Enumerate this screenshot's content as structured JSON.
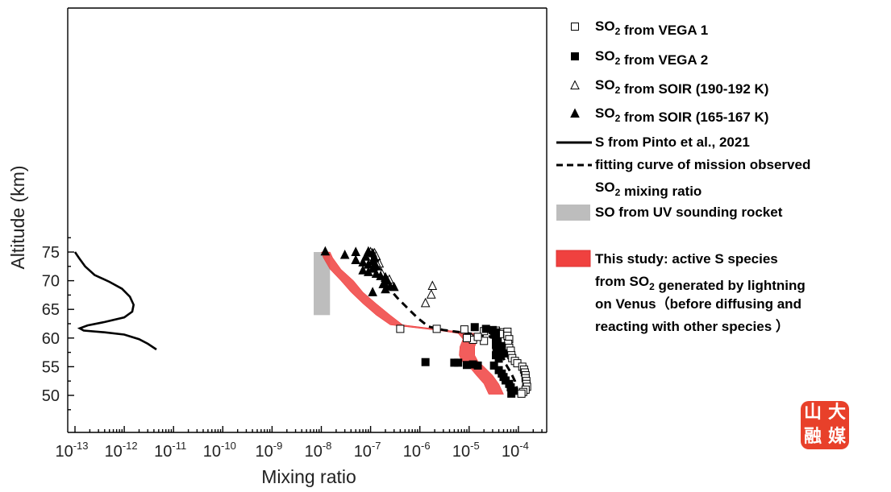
{
  "chart_data": {
    "type": "scatter",
    "xlabel": "Mixing ratio",
    "ylabel": "Altitude (km)",
    "xscale": "log",
    "xlim": [
      1e-13,
      0.0002
    ],
    "ylim": [
      48,
      77
    ],
    "x_ticks": [
      {
        "base": "10",
        "exp": "-13"
      },
      {
        "base": "10",
        "exp": "-12"
      },
      {
        "base": "10",
        "exp": "-11"
      },
      {
        "base": "10",
        "exp": "-10"
      },
      {
        "base": "10",
        "exp": "-9"
      },
      {
        "base": "10",
        "exp": "-8"
      },
      {
        "base": "10",
        "exp": "-7"
      },
      {
        "base": "10",
        "exp": "-6"
      },
      {
        "base": "10",
        "exp": "-5"
      },
      {
        "base": "10",
        "exp": "-4"
      }
    ],
    "y_ticks": [
      "50",
      "55",
      "60",
      "65",
      "70",
      "75"
    ],
    "legend_position": "right",
    "legend": [
      {
        "key": "vega1",
        "parts": [
          {
            "t": "SO"
          },
          {
            "t": "2",
            "sub": true
          },
          {
            "t": " from VEGA 1"
          }
        ]
      },
      {
        "key": "vega2",
        "parts": [
          {
            "t": "SO"
          },
          {
            "t": "2",
            "sub": true
          },
          {
            "t": " from VEGA 2"
          }
        ]
      },
      {
        "key": "soir_hot",
        "parts": [
          {
            "t": "SO"
          },
          {
            "t": "2",
            "sub": true
          },
          {
            "t": " from SOIR (190-192 K)"
          }
        ]
      },
      {
        "key": "soir_cold",
        "parts": [
          {
            "t": "SO"
          },
          {
            "t": "2",
            "sub": true
          },
          {
            "t": " from SOIR (165-167 K)"
          }
        ]
      },
      {
        "key": "pinto",
        "parts": [
          {
            "t": "S from Pinto et al., 2021"
          }
        ]
      },
      {
        "key": "fit",
        "parts": [
          {
            "t": "fitting curve of mission observed"
          }
        ],
        "line2": [
          {
            "t": "SO"
          },
          {
            "t": "2",
            "sub": true
          },
          {
            "t": " mixing ratio"
          }
        ]
      },
      {
        "key": "so_rocket",
        "parts": [
          {
            "t": "SO from UV sounding rocket"
          }
        ]
      },
      {
        "key": "this_study",
        "parts": [
          {
            "t": "This study: active S species"
          }
        ],
        "extra": [
          [
            {
              "t": " from  SO"
            },
            {
              "t": "2",
              "sub": true
            },
            {
              "t": " generated by  lightning"
            }
          ],
          [
            {
              "t": "on Venus（before diffusing and"
            }
          ],
          [
            {
              "t": " reacting with other species ）"
            }
          ]
        ]
      }
    ],
    "series": [
      {
        "name": "SO2 from VEGA 1",
        "marker": "open-square",
        "points": [
          [
            4e-07,
            61.6
          ],
          [
            2.2e-06,
            61.6
          ],
          [
            8e-06,
            61.5
          ],
          [
            2e-05,
            61.2
          ],
          [
            3.5e-05,
            61.3
          ],
          [
            5e-05,
            61.0
          ],
          [
            6e-05,
            61.1
          ],
          [
            4.2e-05,
            60.7
          ],
          [
            6e-05,
            60.4
          ],
          [
            6.5e-05,
            59.8
          ],
          [
            6.2e-05,
            59.0
          ],
          [
            6.5e-05,
            58.3
          ],
          [
            7e-05,
            57.8
          ],
          [
            7.2e-05,
            57.0
          ],
          [
            7.5e-05,
            56.5
          ],
          [
            8.5e-05,
            56.0
          ],
          [
            9.5e-05,
            55.6
          ],
          [
            0.00012,
            55.0
          ],
          [
            0.00013,
            54.5
          ],
          [
            0.000135,
            54.0
          ],
          [
            0.00014,
            53.5
          ],
          [
            0.00014,
            53.0
          ],
          [
            0.000145,
            52.5
          ],
          [
            0.000145,
            52.0
          ],
          [
            0.00015,
            51.5
          ],
          [
            0.00014,
            51.0
          ],
          [
            0.000125,
            50.6
          ],
          [
            0.000115,
            50.3
          ],
          [
            1e-05,
            60.0
          ],
          [
            1.2e-05,
            59.7
          ],
          [
            2e-05,
            59.5
          ],
          [
            1.5e-05,
            60.2
          ],
          [
            9e-06,
            60.0
          ]
        ]
      },
      {
        "name": "SO2 from VEGA 2",
        "marker": "filled-square",
        "points": [
          [
            1.3e-06,
            55.8
          ],
          [
            5e-06,
            55.7
          ],
          [
            6e-06,
            55.7
          ],
          [
            9e-06,
            55.3
          ],
          [
            1.2e-05,
            55.4
          ],
          [
            1.5e-05,
            55.2
          ],
          [
            1.3e-05,
            61.9
          ],
          [
            2.2e-05,
            61.6
          ],
          [
            3e-05,
            61.4
          ],
          [
            3.5e-05,
            61.0
          ],
          [
            3.2e-05,
            60.6
          ],
          [
            3.5e-05,
            60.0
          ],
          [
            3.8e-05,
            59.4
          ],
          [
            3.5e-05,
            58.8
          ],
          [
            3.6e-05,
            58.2
          ],
          [
            3.8e-05,
            57.6
          ],
          [
            3.5e-05,
            57.0
          ],
          [
            4e-05,
            56.4
          ],
          [
            3.2e-05,
            55.2
          ],
          [
            4e-05,
            54.4
          ],
          [
            4.6e-05,
            53.8
          ],
          [
            5e-05,
            53.2
          ],
          [
            5.5e-05,
            52.6
          ],
          [
            6.5e-05,
            52.0
          ],
          [
            7e-05,
            51.4
          ],
          [
            8e-05,
            50.8
          ],
          [
            7.2e-05,
            50.3
          ],
          [
            5e-05,
            57.3
          ],
          [
            4.5e-05,
            58.6
          ]
        ]
      },
      {
        "name": "SO2 from SOIR (190-192 K)",
        "marker": "open-triangle",
        "points": [
          [
            1e-07,
            75.0
          ],
          [
            1.2e-07,
            74.8
          ],
          [
            1.3e-07,
            74.3
          ],
          [
            1.1e-07,
            73.5
          ],
          [
            1.5e-07,
            73.0
          ],
          [
            1.4e-07,
            72.6
          ],
          [
            1.3e-07,
            72.2
          ],
          [
            1.5e-07,
            71.7
          ],
          [
            1.7e-07,
            71.2
          ],
          [
            2e-07,
            70.6
          ],
          [
            2.4e-07,
            70.2
          ],
          [
            1.8e-06,
            69.1
          ],
          [
            1.7e-06,
            67.6
          ],
          [
            1.3e-06,
            66.1
          ]
        ]
      },
      {
        "name": "SO2 from SOIR (165-167 K)",
        "marker": "filled-triangle",
        "points": [
          [
            1.2e-08,
            75.1
          ],
          [
            3e-08,
            74.5
          ],
          [
            5e-08,
            75.0
          ],
          [
            9e-08,
            75.1
          ],
          [
            1.1e-07,
            74.8
          ],
          [
            8e-08,
            74.2
          ],
          [
            1.2e-07,
            74.0
          ],
          [
            5e-08,
            73.6
          ],
          [
            7e-08,
            73.2
          ],
          [
            1.1e-07,
            73.4
          ],
          [
            9e-08,
            72.8
          ],
          [
            1.3e-07,
            72.5
          ],
          [
            1.1e-07,
            72.1
          ],
          [
            7e-08,
            71.8
          ],
          [
            9e-08,
            71.5
          ],
          [
            1.3e-07,
            71.2
          ],
          [
            1.6e-07,
            70.8
          ],
          [
            2e-07,
            70.5
          ],
          [
            2.2e-07,
            70.0
          ],
          [
            1.8e-07,
            69.4
          ],
          [
            2.5e-07,
            69.0
          ],
          [
            2e-07,
            68.5
          ],
          [
            3e-07,
            68.9
          ],
          [
            1.1e-07,
            68.0
          ]
        ]
      },
      {
        "name": "S from Pinto et al., 2021",
        "line": "solid",
        "points": [
          [
            1e-13,
            75
          ],
          [
            1.2e-13,
            74
          ],
          [
            1.6e-13,
            72.5
          ],
          [
            2.5e-13,
            71
          ],
          [
            5e-13,
            69.8
          ],
          [
            9e-13,
            68.6
          ],
          [
            1.3e-12,
            67.2
          ],
          [
            1.55e-12,
            65.8
          ],
          [
            1.45e-12,
            64.6
          ],
          [
            1e-12,
            63.6
          ],
          [
            4e-13,
            62.8
          ],
          [
            1.8e-13,
            62.2
          ],
          [
            1.25e-13,
            61.7
          ],
          [
            1.5e-13,
            61.3
          ],
          [
            4e-13,
            61.0
          ],
          [
            1e-12,
            60.6
          ],
          [
            2e-12,
            59.8
          ],
          [
            3e-12,
            59.0
          ],
          [
            4.5e-12,
            58.0
          ]
        ]
      },
      {
        "name": "fitting curve of mission observed SO2 mixing ratio",
        "line": "dashed",
        "points": [
          [
            1e-07,
            75
          ],
          [
            1.15e-07,
            73
          ],
          [
            1.5e-07,
            71
          ],
          [
            2.2e-07,
            69
          ],
          [
            3.5e-07,
            67
          ],
          [
            6e-07,
            65
          ],
          [
            9e-07,
            63.5
          ],
          [
            1.5e-06,
            62
          ],
          [
            3e-06,
            61.4
          ],
          [
            1e-05,
            60.8
          ],
          [
            2.5e-05,
            60.3
          ],
          [
            3.8e-05,
            59.7
          ],
          [
            4.5e-05,
            58.5
          ],
          [
            4.8e-05,
            57
          ],
          [
            5.5e-05,
            55.5
          ],
          [
            7e-05,
            54
          ],
          [
            8.5e-05,
            52.5
          ],
          [
            9.5e-05,
            51
          ]
        ]
      },
      {
        "name": "SO from UV sounding rocket",
        "band": "gray",
        "x_range": [
          7e-09,
          1.5e-08
        ],
        "y_range": [
          64,
          75
        ]
      },
      {
        "name": "This study: active S species",
        "band": "red",
        "left": [
          [
            1e-08,
            75
          ],
          [
            1.1e-08,
            74
          ],
          [
            1.5e-08,
            72
          ],
          [
            2.5e-08,
            70
          ],
          [
            4e-08,
            68
          ],
          [
            7e-08,
            66
          ],
          [
            1.3e-07,
            64
          ],
          [
            2.5e-07,
            62.3
          ],
          [
            2.5e-06,
            61.3
          ],
          [
            6e-06,
            60.8
          ],
          [
            7.5e-06,
            59.8
          ],
          [
            6.5e-06,
            58.5
          ],
          [
            6.3e-06,
            57
          ],
          [
            7e-06,
            56
          ],
          [
            1e-05,
            55
          ],
          [
            1.4e-05,
            53.5
          ],
          [
            2e-05,
            52
          ],
          [
            2.5e-05,
            50.2
          ]
        ],
        "right": [
          [
            1.5e-08,
            75
          ],
          [
            1.7e-08,
            74
          ],
          [
            2.5e-08,
            72
          ],
          [
            4.5e-08,
            70
          ],
          [
            7e-08,
            68
          ],
          [
            1.3e-07,
            66
          ],
          [
            2.5e-07,
            64
          ],
          [
            4.5e-07,
            62.3
          ],
          [
            5e-06,
            61.2
          ],
          [
            1.3e-05,
            60.8
          ],
          [
            1.5e-05,
            59.8
          ],
          [
            1.3e-05,
            58.5
          ],
          [
            1.3e-05,
            57
          ],
          [
            1.5e-05,
            56
          ],
          [
            2e-05,
            55
          ],
          [
            3e-05,
            53.5
          ],
          [
            4e-05,
            52
          ],
          [
            5e-05,
            50.2
          ]
        ]
      }
    ]
  },
  "watermark": {
    "chars": [
      "山",
      "大",
      "融",
      "媒"
    ]
  }
}
